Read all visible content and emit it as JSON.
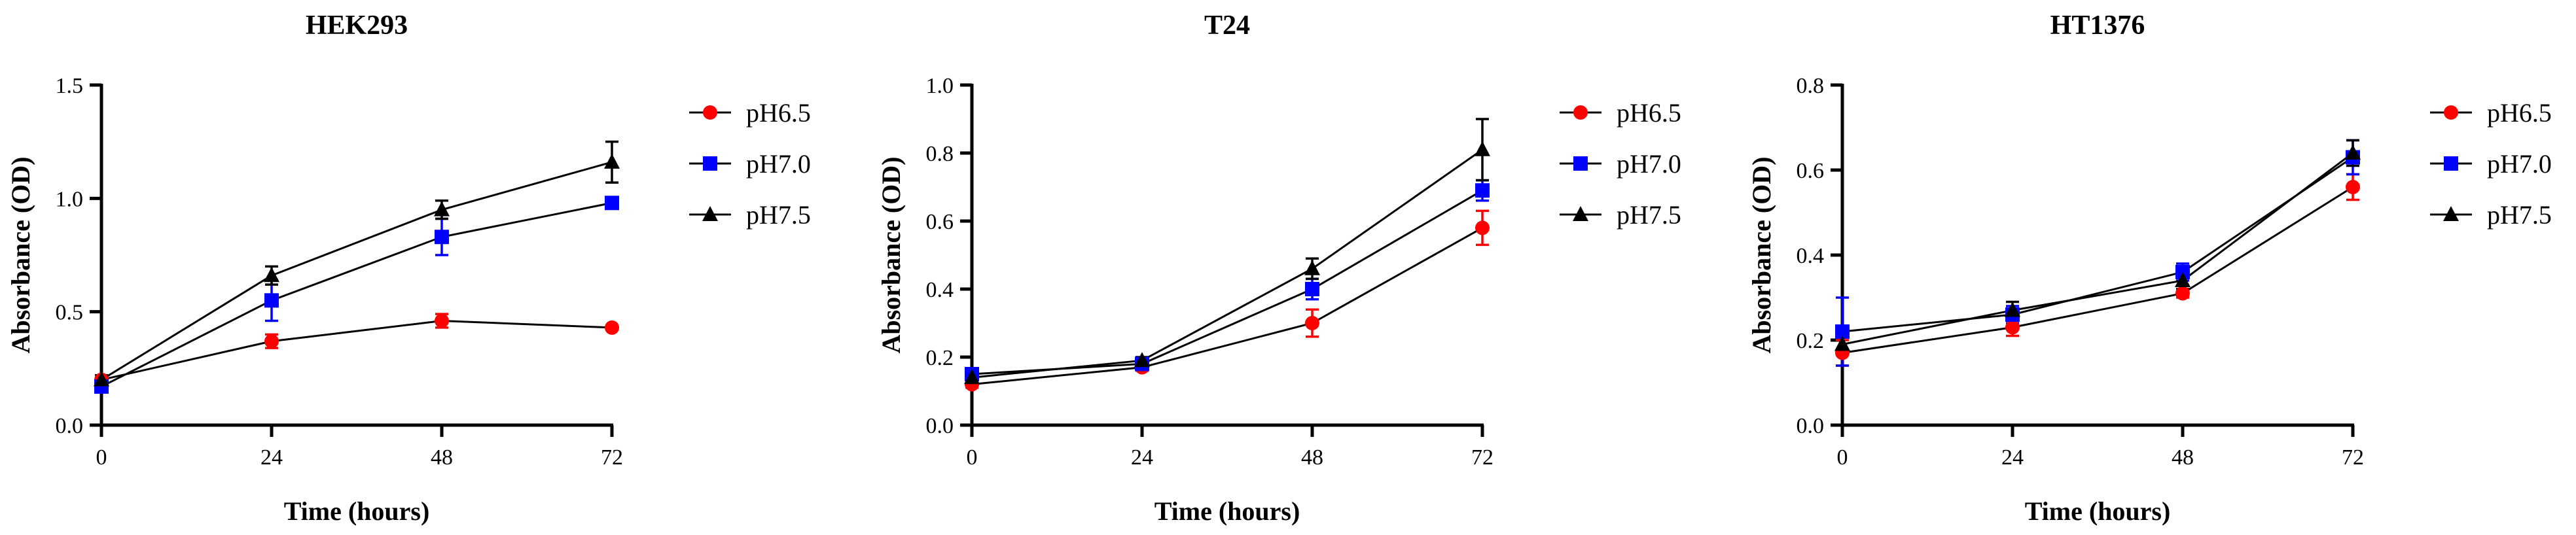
{
  "colors": {
    "pH6.5": "#ff0000",
    "pH7.0": "#0000ff",
    "pH7.5": "#000000"
  },
  "markers": {
    "pH6.5": "circle",
    "pH7.0": "square",
    "pH7.5": "triangle"
  },
  "chart_data": [
    {
      "type": "line",
      "title": "HEK293",
      "xlabel": "Time (hours)",
      "ylabel": "Absorbance (OD)",
      "x": [
        0,
        24,
        48,
        72
      ],
      "xticks": [
        "0",
        "24",
        "48",
        "72"
      ],
      "ylim": [
        0,
        1.5
      ],
      "yticks": [
        "0.0",
        "0.5",
        "1.0",
        "1.5"
      ],
      "ytick_values": [
        0,
        0.5,
        1.0,
        1.5
      ],
      "legend_position": "right",
      "series": [
        {
          "name": "pH6.5",
          "values": [
            0.2,
            0.37,
            0.46,
            0.43
          ],
          "errors": [
            0.02,
            0.03,
            0.03,
            0.01
          ]
        },
        {
          "name": "pH7.0",
          "values": [
            0.17,
            0.55,
            0.83,
            0.98
          ],
          "errors": [
            0.02,
            0.09,
            0.08,
            0.02
          ]
        },
        {
          "name": "pH7.5",
          "values": [
            0.2,
            0.66,
            0.95,
            1.16
          ],
          "errors": [
            0.02,
            0.04,
            0.04,
            0.09
          ]
        }
      ]
    },
    {
      "type": "line",
      "title": "T24",
      "xlabel": "Time (hours)",
      "ylabel": "Absorbance (OD)",
      "x": [
        0,
        24,
        48,
        72
      ],
      "xticks": [
        "0",
        "24",
        "48",
        "72"
      ],
      "ylim": [
        0,
        1.0
      ],
      "yticks": [
        "0.0",
        "0.2",
        "0.4",
        "0.6",
        "0.8",
        "1.0"
      ],
      "ytick_values": [
        0,
        0.2,
        0.4,
        0.6,
        0.8,
        1.0
      ],
      "legend_position": "right",
      "series": [
        {
          "name": "pH6.5",
          "values": [
            0.12,
            0.17,
            0.3,
            0.58
          ],
          "errors": [
            0.01,
            0.01,
            0.04,
            0.05
          ]
        },
        {
          "name": "pH7.0",
          "values": [
            0.15,
            0.18,
            0.4,
            0.69
          ],
          "errors": [
            0.01,
            0.01,
            0.03,
            0.03
          ]
        },
        {
          "name": "pH7.5",
          "values": [
            0.14,
            0.19,
            0.46,
            0.81
          ],
          "errors": [
            0.01,
            0.01,
            0.03,
            0.09
          ]
        }
      ]
    },
    {
      "type": "line",
      "title": "HT1376",
      "xlabel": "Time (hours)",
      "ylabel": "Absorbance (OD)",
      "x": [
        0,
        24,
        48,
        72
      ],
      "xticks": [
        "0",
        "24",
        "48",
        "72"
      ],
      "ylim": [
        0,
        0.8
      ],
      "yticks": [
        "0.0",
        "0.2",
        "0.4",
        "0.6",
        "0.8"
      ],
      "ytick_values": [
        0,
        0.2,
        0.4,
        0.6,
        0.8
      ],
      "legend_position": "right",
      "series": [
        {
          "name": "pH6.5",
          "values": [
            0.17,
            0.23,
            0.31,
            0.56
          ],
          "errors": [
            0.03,
            0.02,
            0.01,
            0.03
          ]
        },
        {
          "name": "pH7.0",
          "values": [
            0.22,
            0.26,
            0.36,
            0.63
          ],
          "errors": [
            0.08,
            0.02,
            0.02,
            0.04
          ]
        },
        {
          "name": "pH7.5",
          "values": [
            0.19,
            0.27,
            0.34,
            0.64
          ],
          "errors": [
            0.02,
            0.02,
            0.02,
            0.03
          ]
        }
      ]
    }
  ]
}
